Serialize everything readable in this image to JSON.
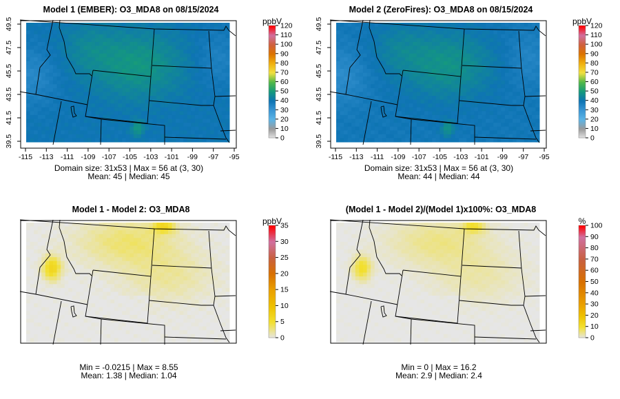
{
  "panels": [
    {
      "title": "Model 1 (EMBER): O3_MDA8 on 08/15/2024",
      "unit": "ppbV",
      "colorbar_ticks": [
        0,
        10,
        20,
        30,
        40,
        50,
        60,
        70,
        80,
        90,
        100,
        110,
        120
      ],
      "scale": "ozone",
      "show_axes": true,
      "stats": [
        "Domain size: 31x53 | Max = 56 at (3, 30)",
        "Mean: 45 |  Median: 45"
      ],
      "mean": 45
    },
    {
      "title": "Model 2 (ZeroFires): O3_MDA8 on 08/15/2024",
      "unit": "ppbV",
      "colorbar_ticks": [
        0,
        10,
        20,
        30,
        40,
        50,
        60,
        70,
        80,
        90,
        100,
        110,
        120
      ],
      "scale": "ozone",
      "show_axes": true,
      "stats": [
        "Domain size: 31x53 | Max = 56 at (3, 30)",
        "Mean: 44 |  Median: 44"
      ],
      "mean": 44
    },
    {
      "title": "Model 1 - Model 2: O3_MDA8",
      "unit": "ppbV",
      "colorbar_ticks": [
        0,
        5,
        10,
        15,
        20,
        25,
        30,
        35
      ],
      "scale": "diff",
      "show_axes": false,
      "stats": [
        "Min = -0.0215 | Max = 8.55",
        "Mean: 1.38 |  Median: 1.04"
      ],
      "mean": 1.38
    },
    {
      "title": "(Model 1 - Model 2)/(Model 1)x100%: O3_MDA8",
      "unit": "%",
      "colorbar_ticks": [
        0,
        10,
        20,
        30,
        40,
        50,
        60,
        70,
        80,
        90,
        100
      ],
      "scale": "pct",
      "show_axes": false,
      "stats": [
        "Min = 0 | Max = 16.2",
        "Mean: 2.9 |  Median: 2.4"
      ],
      "mean": 2.9
    }
  ],
  "axes": {
    "x_ticks": [
      -115,
      -113,
      -111,
      -109,
      -107,
      -105,
      -103,
      -101,
      -99,
      -97,
      -95
    ],
    "y_ticks": [
      39.5,
      41.5,
      43.5,
      45.5,
      47.5,
      49.5
    ]
  },
  "chart_data": {
    "type": "heatmap",
    "domain_size": "31x53",
    "lon_range": [
      -115,
      -95
    ],
    "lat_range": [
      39.5,
      49.5
    ]
  }
}
